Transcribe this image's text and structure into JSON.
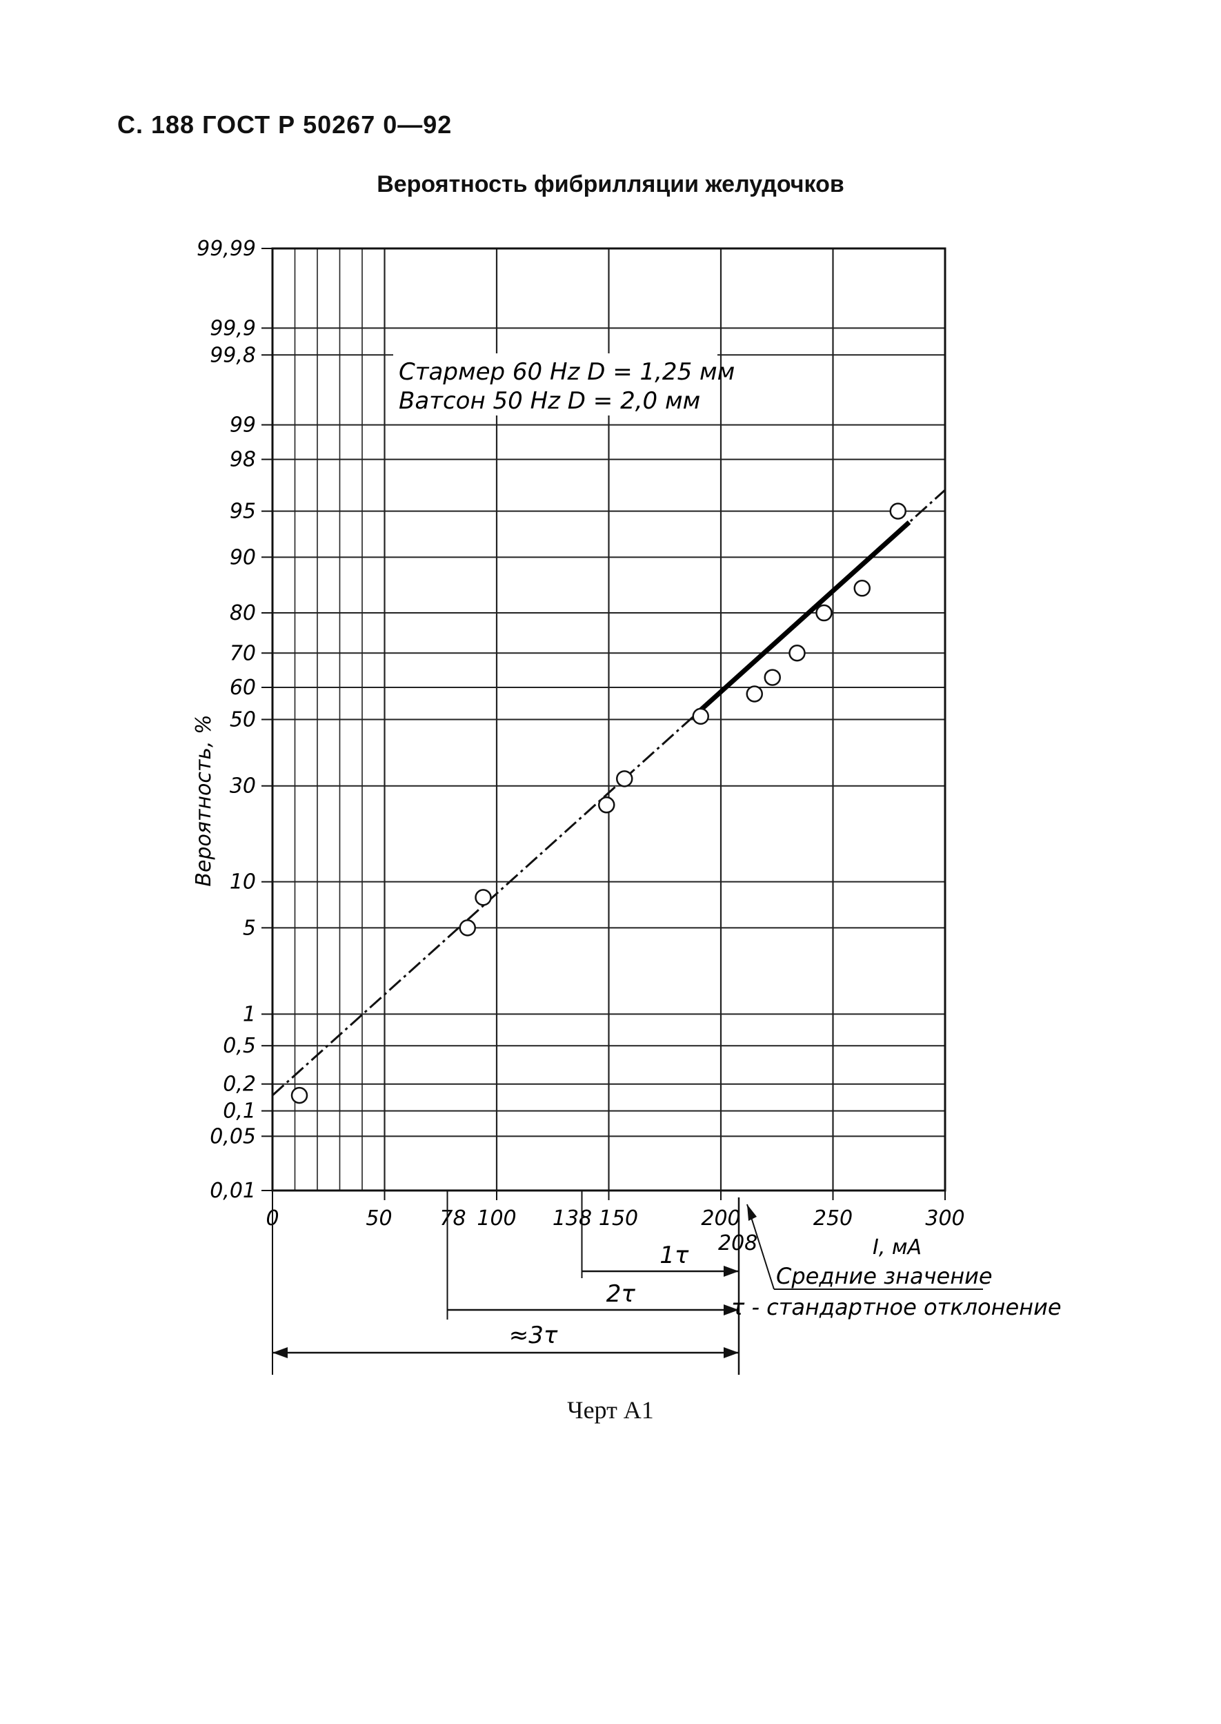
{
  "page": {
    "header": "С. 188 ГОСТ Р 50267 0—92",
    "title": "Вероятность фибрилляции желудочков",
    "caption": "Черт А1"
  },
  "chart_data": {
    "type": "scatter",
    "title": "Вероятность фибрилляции желудочков",
    "xlabel": "I, мА",
    "ylabel": "Вероятность, %",
    "x_scale": "linear",
    "y_scale": "probability",
    "xlim": [
      0,
      300
    ],
    "ylim": [
      0.01,
      99.99
    ],
    "x_ticks": [
      0,
      50,
      78,
      100,
      138,
      150,
      200,
      250,
      300
    ],
    "x_tick_labels": [
      "0",
      "50",
      "78",
      "100",
      "138",
      "150",
      "200",
      "250",
      "300"
    ],
    "y_ticks": [
      0.01,
      0.05,
      0.1,
      0.2,
      0.5,
      1,
      5,
      10,
      30,
      50,
      60,
      70,
      80,
      90,
      95,
      98,
      99,
      99.8,
      99.9,
      99.99
    ],
    "y_tick_labels": [
      "0,01",
      "0,05",
      "0,1",
      "0,2",
      "0,5",
      "1",
      "5",
      "10",
      "30",
      "50",
      "60",
      "70",
      "80",
      "90",
      "95",
      "98",
      "99",
      "99,8",
      "99,9",
      "99,99"
    ],
    "legend": [
      "Стармер 60 Hz D = 1,25 мм",
      "Ватсон 50 Hz D = 2,0 мм"
    ],
    "series": [
      {
        "name": "Стармер 60 Hz D = 1,25 мм",
        "marker": "circle",
        "x": [
          12,
          87,
          94,
          149,
          157,
          191,
          215,
          223,
          234,
          246,
          263,
          279
        ],
        "y": [
          0.15,
          5.0,
          8.0,
          25.0,
          32.0,
          51.0,
          58.0,
          63.0,
          70.0,
          80.0,
          85.0,
          95.0
        ]
      }
    ],
    "fit_line": {
      "x": [
        0,
        300
      ],
      "y": [
        0.15,
        96.5
      ],
      "label": "Средние значение"
    },
    "annotations": {
      "mean_value": "208",
      "mean_label": "Средние значение",
      "tau_label": "τ - стандартное отклонение",
      "one_tau": "1τ",
      "two_tau": "2τ",
      "three_tau": "≈3τ"
    }
  }
}
